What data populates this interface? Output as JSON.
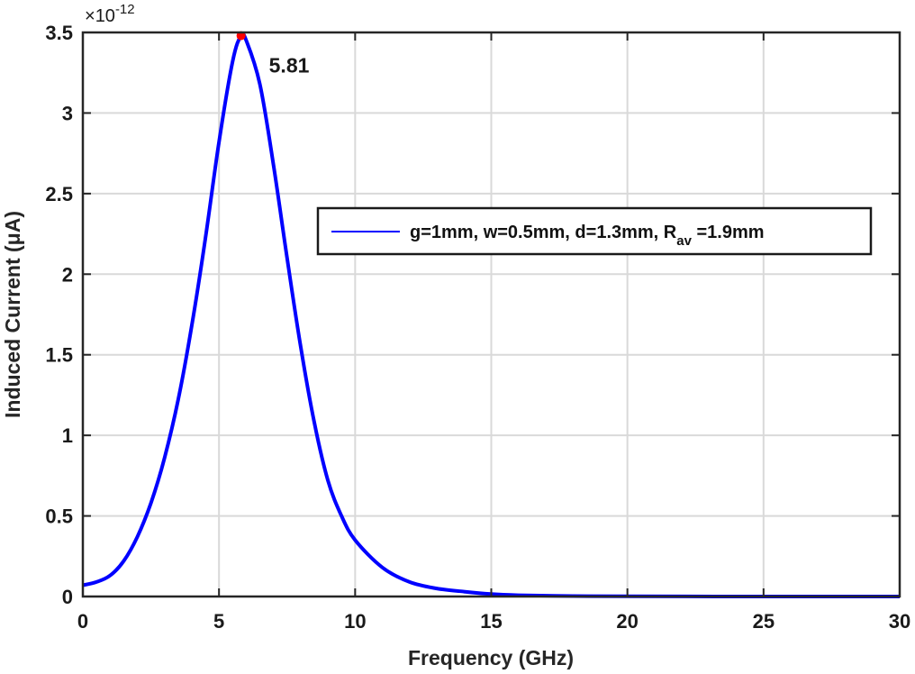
{
  "chart_data": {
    "type": "line",
    "title": "",
    "xlabel": "Frequency (GHz)",
    "ylabel": "Induced Current (μA)",
    "y_multiplier": {
      "times": "×",
      "base": "10",
      "exponent": "-12"
    },
    "xlim": [
      0,
      30
    ],
    "ylim": [
      0,
      3.5
    ],
    "grid": true,
    "legend_position": "center-right",
    "x_ticks": [
      "0",
      "5",
      "10",
      "15",
      "20",
      "25",
      "30"
    ],
    "y_ticks": [
      "0",
      "0.5",
      "1",
      "1.5",
      "2",
      "2.5",
      "3",
      "3.5"
    ],
    "series": [
      {
        "name": "g=1mm, w=0.5mm, d=1.3mm, R_av =1.9mm",
        "legend_text": "g=1mm, w=0.5mm, d=1.3mm, R",
        "legend_sub": "av",
        "legend_tail": " =1.9mm",
        "color": "#0000ff",
        "x": [
          0,
          0.5,
          1,
          1.5,
          2,
          2.5,
          3,
          3.5,
          4,
          4.5,
          5,
          5.5,
          5.81,
          6,
          6.5,
          7,
          7.5,
          8,
          8.5,
          9,
          9.5,
          10,
          11,
          12,
          13,
          14,
          15,
          16,
          18,
          20,
          25,
          30
        ],
        "y": [
          0.07,
          0.09,
          0.13,
          0.22,
          0.37,
          0.58,
          0.86,
          1.22,
          1.68,
          2.22,
          2.82,
          3.32,
          3.48,
          3.45,
          3.18,
          2.68,
          2.1,
          1.55,
          1.08,
          0.72,
          0.5,
          0.35,
          0.18,
          0.09,
          0.05,
          0.03,
          0.015,
          0.008,
          0.003,
          0.001,
          0.0,
          0.0
        ]
      }
    ],
    "annotations": [
      {
        "text": "5.81",
        "x": 5.81,
        "y": 3.48,
        "marker_color": "#ff0000"
      }
    ]
  }
}
